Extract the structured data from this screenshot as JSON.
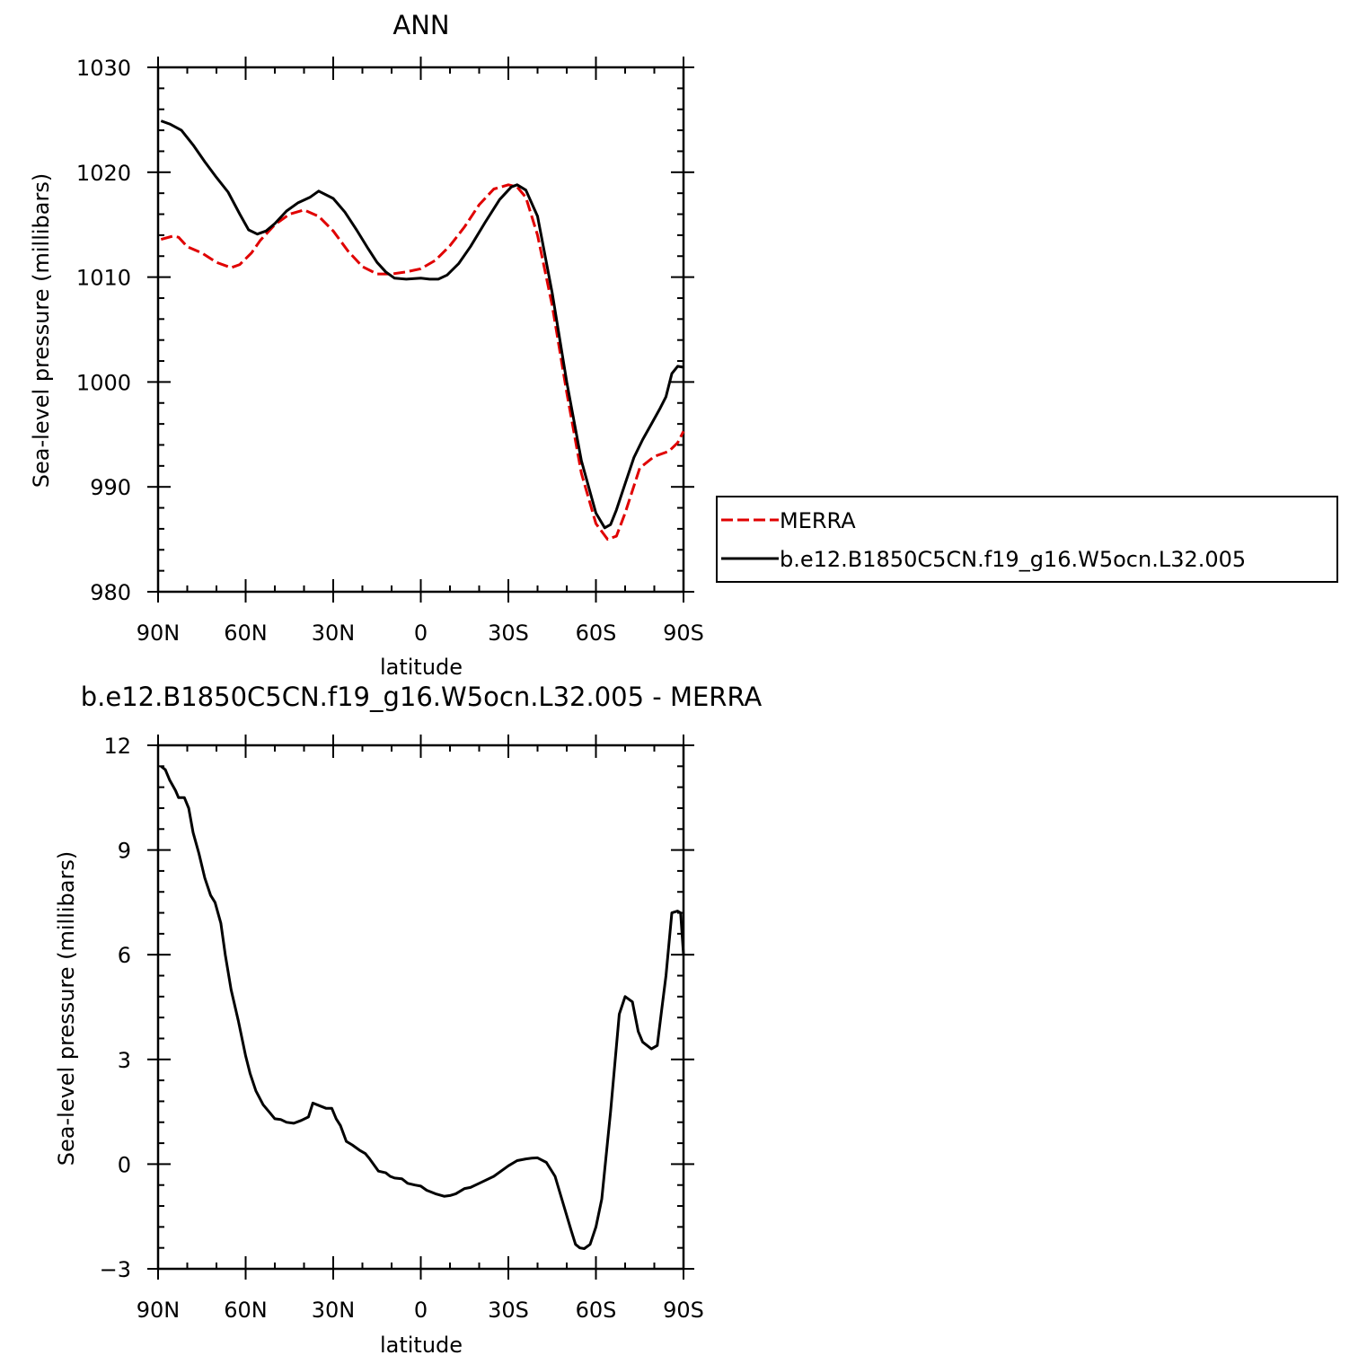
{
  "chart_data": [
    {
      "type": "line",
      "title": "ANN",
      "xlabel": "latitude",
      "ylabel": "Sea-level pressure (millibars)",
      "xlim": [
        90,
        -90
      ],
      "ylim": [
        980,
        1030
      ],
      "xticks": [
        90,
        60,
        30,
        0,
        -30,
        -60,
        -90
      ],
      "xtick_labels": [
        "90N",
        "60N",
        "30N",
        "0",
        "30S",
        "60S",
        "90S"
      ],
      "yticks": [
        980,
        990,
        1000,
        1010,
        1020,
        1030
      ],
      "ytick_labels": [
        "980",
        "990",
        "1000",
        "1010",
        "1020",
        "1030"
      ],
      "legend_position": "right",
      "series": [
        {
          "name": "MERRA",
          "color": "#e00000",
          "dash": "dashed",
          "x": [
            89,
            85,
            83,
            80,
            75,
            70,
            65,
            62,
            58,
            55,
            50,
            45,
            40,
            35,
            30,
            25,
            20,
            15,
            10,
            5,
            0,
            -5,
            -10,
            -15,
            -20,
            -25,
            -30,
            -33,
            -36,
            -40,
            -45,
            -50,
            -55,
            -60,
            -64,
            -67,
            -70,
            -75,
            -80,
            -85,
            -88,
            -90
          ],
          "y": [
            1013.6,
            1013.9,
            1013.8,
            1012.9,
            1012.3,
            1011.4,
            1010.9,
            1011.2,
            1012.3,
            1013.5,
            1015.0,
            1016.0,
            1016.4,
            1015.8,
            1014.4,
            1012.5,
            1011.0,
            1010.3,
            1010.3,
            1010.5,
            1010.8,
            1011.6,
            1013.0,
            1014.8,
            1016.9,
            1018.4,
            1018.8,
            1018.6,
            1017.6,
            1014.0,
            1007.3,
            999.0,
            991.3,
            986.5,
            985.0,
            985.3,
            987.5,
            991.8,
            992.9,
            993.4,
            994.2,
            995.3
          ]
        },
        {
          "name": "b.e12.B1850C5CN.f19_g16.W5ocn.L32.005",
          "color": "#000000",
          "dash": "solid",
          "x": [
            89,
            86,
            82,
            78,
            74,
            70,
            66,
            62,
            59,
            56,
            53,
            50,
            46,
            42,
            38,
            35,
            30,
            26,
            22,
            18,
            15,
            12,
            9,
            5,
            0,
            -3,
            -6,
            -9,
            -13,
            -17,
            -22,
            -27,
            -31,
            -33,
            -36,
            -40,
            -45,
            -50,
            -55,
            -60,
            -63,
            -65,
            -67,
            -70,
            -73,
            -76,
            -79,
            -82,
            -84,
            -86,
            -88,
            -90
          ],
          "y": [
            1024.9,
            1024.6,
            1024.0,
            1022.6,
            1021.0,
            1019.5,
            1018.1,
            1016.0,
            1014.5,
            1014.1,
            1014.4,
            1015.1,
            1016.3,
            1017.1,
            1017.6,
            1018.2,
            1017.5,
            1016.2,
            1014.5,
            1012.7,
            1011.4,
            1010.5,
            1009.9,
            1009.8,
            1009.9,
            1009.8,
            1009.8,
            1010.2,
            1011.3,
            1012.9,
            1015.2,
            1017.4,
            1018.6,
            1018.8,
            1018.3,
            1015.8,
            1008.5,
            1000.0,
            992.5,
            987.5,
            986.1,
            986.4,
            987.8,
            990.3,
            992.8,
            994.5,
            996.0,
            997.5,
            998.6,
            1000.8,
            1001.5,
            1001.4
          ]
        }
      ]
    },
    {
      "type": "line",
      "title": "b.e12.B1850C5CN.f19_g16.W5ocn.L32.005 - MERRA",
      "xlabel": "latitude",
      "ylabel": "Sea-level pressure (millibars)",
      "xlim": [
        90,
        -90
      ],
      "ylim": [
        -3,
        12
      ],
      "xticks": [
        90,
        60,
        30,
        0,
        -30,
        -60,
        -90
      ],
      "xtick_labels": [
        "90N",
        "60N",
        "30N",
        "0",
        "30S",
        "60S",
        "90S"
      ],
      "yticks": [
        -3,
        0,
        3,
        6,
        9,
        12
      ],
      "ytick_labels": [
        "−3",
        "0",
        "3",
        "6",
        "9",
        "12"
      ],
      "series": [
        {
          "color": "#000000",
          "dash": "solid",
          "x": [
            89,
            87.5,
            86,
            84,
            83,
            81,
            79.5,
            78,
            76,
            74,
            72,
            70.5,
            68.5,
            67,
            65,
            62.5,
            60,
            58.5,
            56.5,
            54,
            52,
            50,
            48,
            46,
            43.5,
            41,
            38.5,
            37,
            35.5,
            32.5,
            30.5,
            29,
            27.5,
            25.5,
            23.5,
            21,
            19,
            17.5,
            14.5,
            12,
            10.5,
            9,
            6.5,
            4.5,
            2,
            0,
            -2,
            -5,
            -8,
            -10,
            -12,
            -15,
            -17,
            -20,
            -25,
            -30,
            -33,
            -36,
            -38,
            -40,
            -43,
            -46,
            -49,
            -51.5,
            -53,
            -54.5,
            -56,
            -58,
            -60,
            -62,
            -65,
            -68,
            -70,
            -72.5,
            -74.5,
            -76,
            -79,
            -81,
            -82.5,
            -84,
            -86,
            -88,
            -89,
            -90
          ],
          "y": [
            11.4,
            11.3,
            11.0,
            10.7,
            10.5,
            10.5,
            10.2,
            9.5,
            8.9,
            8.2,
            7.7,
            7.5,
            6.9,
            6.0,
            5.0,
            4.1,
            3.1,
            2.6,
            2.1,
            1.7,
            1.5,
            1.3,
            1.28,
            1.2,
            1.17,
            1.25,
            1.35,
            1.75,
            1.7,
            1.6,
            1.6,
            1.3,
            1.1,
            0.65,
            0.55,
            0.4,
            0.3,
            0.15,
            -0.2,
            -0.25,
            -0.35,
            -0.4,
            -0.42,
            -0.55,
            -0.6,
            -0.63,
            -0.75,
            -0.85,
            -0.92,
            -0.9,
            -0.85,
            -0.7,
            -0.67,
            -0.55,
            -0.35,
            -0.05,
            0.1,
            0.15,
            0.17,
            0.18,
            0.05,
            -0.35,
            -1.2,
            -1.9,
            -2.3,
            -2.4,
            -2.42,
            -2.3,
            -1.8,
            -1.0,
            1.5,
            4.3,
            4.8,
            4.65,
            3.8,
            3.5,
            3.3,
            3.4,
            4.4,
            5.4,
            7.2,
            7.25,
            7.2,
            6.0
          ]
        }
      ]
    }
  ]
}
